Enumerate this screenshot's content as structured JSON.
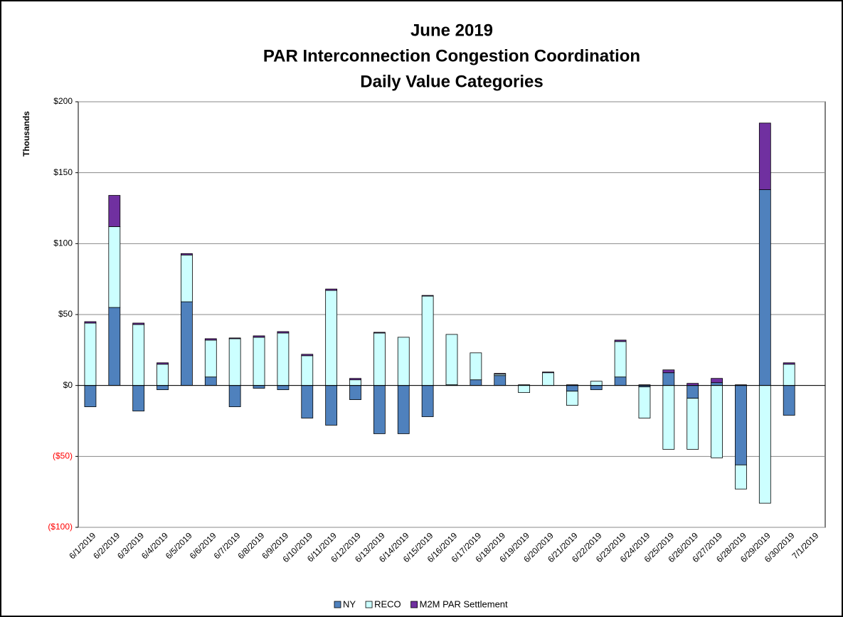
{
  "chart_data": {
    "type": "bar",
    "stacked": true,
    "title_lines": [
      "June 2019",
      "PAR Interconnection Congestion Coordination",
      "Daily Value Categories"
    ],
    "y_axis_label": "Thousands",
    "categories": [
      "6/1/2019",
      "6/2/2019",
      "6/3/2019",
      "6/4/2019",
      "6/5/2019",
      "6/6/2019",
      "6/7/2019",
      "6/8/2019",
      "6/9/2019",
      "6/10/2019",
      "6/11/2019",
      "6/12/2019",
      "6/13/2019",
      "6/14/2019",
      "6/15/2019",
      "6/16/2019",
      "6/17/2019",
      "6/18/2019",
      "6/19/2019",
      "6/20/2019",
      "6/21/2019",
      "6/22/2019",
      "6/23/2019",
      "6/24/2019",
      "6/25/2019",
      "6/26/2019",
      "6/27/2019",
      "6/28/2019",
      "6/29/2019",
      "6/30/2019",
      "7/1/2019"
    ],
    "series": [
      {
        "name": "NY",
        "color": "#4f81bd",
        "values": [
          -15,
          55,
          -18,
          -3,
          59,
          6,
          -15,
          -2,
          -3,
          -23,
          -28,
          -10,
          -34,
          -34,
          -22,
          0.5,
          4,
          7,
          0.5,
          0,
          -4,
          -3,
          6,
          -1,
          9,
          -9,
          2,
          -56,
          138,
          -21,
          null
        ]
      },
      {
        "name": "RECO",
        "color": "#ccffff",
        "values": [
          44,
          57,
          43,
          15,
          33,
          26,
          33,
          34,
          37,
          21,
          67,
          4,
          37,
          34,
          63,
          35.5,
          19,
          1,
          -5,
          9,
          -10,
          3,
          25,
          -22,
          -45,
          -36,
          -51,
          -17,
          -83,
          15,
          null
        ]
      },
      {
        "name": "M2M PAR Settlement",
        "color": "#7030a0",
        "values": [
          1,
          22,
          1,
          1,
          1,
          1,
          0.5,
          1,
          1,
          1,
          1,
          1,
          0.5,
          0,
          0.5,
          0,
          0,
          0.5,
          0,
          0.5,
          0.5,
          0,
          1,
          0.5,
          2,
          1.5,
          3,
          0.5,
          47,
          1,
          null
        ]
      }
    ],
    "ylim": [
      -100,
      200
    ],
    "yticks": [
      {
        "value": -100,
        "label": "($100)"
      },
      {
        "value": -50,
        "label": "($50)"
      },
      {
        "value": 0,
        "label": "$0"
      },
      {
        "value": 50,
        "label": "$50"
      },
      {
        "value": 100,
        "label": "$100"
      },
      {
        "value": 150,
        "label": "$150"
      },
      {
        "value": 200,
        "label": "$200"
      }
    ],
    "negative_tick_color": "#ff0000",
    "grid": true,
    "legend": "bottom"
  }
}
